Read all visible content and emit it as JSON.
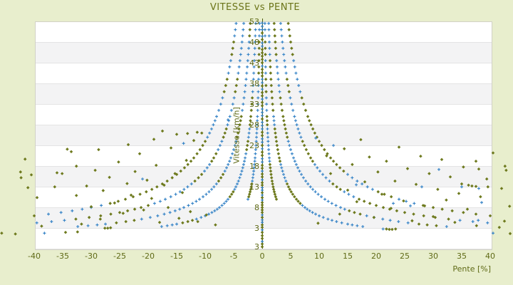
{
  "title": "VITESSE vs PENTE",
  "chart_data": {
    "type": "scatter",
    "title": "VITESSE vs PENTE",
    "xlabel": "Pente [%]",
    "ylabel": "Vitesse [km/h]",
    "xlim": [
      -40,
      40
    ],
    "ylim": [
      -2,
      53
    ],
    "grid": "horizontal-bands",
    "legend": "none",
    "x_tick_labels": [
      "-40",
      "-35",
      "-30",
      "-25",
      "-20",
      "-15",
      "-10",
      "-5",
      "0",
      "5",
      "10",
      "15",
      "20",
      "25",
      "30",
      "35",
      "40"
    ],
    "x_tick_values": [
      -40,
      -35,
      -30,
      -25,
      -20,
      -15,
      -10,
      -5,
      0,
      5,
      10,
      15,
      20,
      25,
      30,
      35,
      40
    ],
    "y_tick_labels": [
      "53",
      "48",
      "43",
      "38",
      "33",
      "28",
      "23",
      "18",
      "13",
      "8",
      "3"
    ],
    "y_tick_values": [
      53,
      48,
      43,
      38,
      33,
      28,
      23,
      18,
      13,
      8,
      3
    ],
    "y_axis_bottom_extra_label": "3",
    "colors": {
      "blue_marker": "#3a86c8",
      "olive_marker": "#6e7a1e",
      "zero_axis_line": "#4e5a10",
      "text": "#5f6a16",
      "title_text": "#6b7418",
      "band_white": "#ffffff",
      "band_gray": "#f3f3f4",
      "page_background": "#e8eecd"
    },
    "markers": {
      "blue": "plus",
      "olive": "diamond"
    },
    "series": [
      {
        "name": "hyperbolic-arcs",
        "description": "dense arcs v = k/|p| mirrored on both sides of p=0, mixed blue/olive markers",
        "model": "v = k / abs(p)",
        "sides": [
          -1,
          1
        ],
        "arcs": [
          {
            "k": 25,
            "v_min": 10,
            "olive_ratio_left": 0.3,
            "olive_ratio_right": 0.55
          },
          {
            "k": 60,
            "v_min": 3.4,
            "olive_ratio_left": 0.3,
            "olive_ratio_right": 0.45
          },
          {
            "k": 110,
            "v_min": 3.4,
            "olive_ratio_left": 0.35,
            "olive_ratio_right": 0.45
          },
          {
            "k": 170,
            "v_min": 4.3,
            "olive_ratio_left": 0.45,
            "olive_ratio_right": 0.5
          },
          {
            "k": 240,
            "v_min": 6.0,
            "olive_ratio_left": 0.5,
            "olive_ratio_right": 0.55
          }
        ],
        "v_samples": [
          52.5,
          51,
          49.5,
          48,
          46.5,
          45,
          43.5,
          42,
          40.5,
          39,
          37.5,
          36,
          34.5,
          33,
          31.5,
          30,
          29,
          28,
          27,
          26,
          25,
          24,
          23,
          22,
          21,
          20,
          19.2,
          18.4,
          17.6,
          16.8,
          16,
          15.2,
          14.4,
          13.7,
          13,
          12.4,
          11.8,
          11.2,
          10.6,
          10,
          9.5,
          9,
          8.5,
          8,
          7.6,
          7.2,
          6.8,
          6.4,
          6,
          5.6,
          5.2,
          4.9,
          4.6,
          4.3,
          4,
          3.8,
          3.6,
          3.4
        ]
      },
      {
        "name": "zero-slope-column",
        "description": "dense column of points on the p=0 axis line",
        "p": 0,
        "olive_ratio": 0.62,
        "v_values": [
          -1.5,
          -0.8,
          -0.2,
          0.5,
          1.2,
          2,
          2.6,
          3.2,
          3.8,
          4.4,
          5,
          5.6,
          6.2,
          6.8,
          7.4,
          8,
          8.6,
          9.2,
          9.8,
          10.4,
          11,
          11.6,
          12.2,
          12.8,
          13.4,
          14,
          14.7,
          15.4,
          16.1,
          16.8,
          17.5,
          18.2,
          19,
          19.8,
          20.6,
          21.4,
          22.2,
          23,
          23.8,
          24.6,
          25.4,
          26.2,
          27,
          27.8,
          28.6,
          29.4,
          30.2,
          31,
          31.8,
          32.6,
          33.4,
          34.2,
          35,
          35.8,
          36.6,
          37.4,
          38.2,
          39,
          39.8,
          40.6,
          41.4,
          42.2,
          43,
          43.8,
          44.6,
          45.4,
          46.2,
          47,
          47.8,
          48.6,
          49.4,
          50.2,
          51,
          51.8,
          52.6
        ]
      },
      {
        "name": "scatter-olive",
        "points": [
          [
            -45.7,
            1.8
          ],
          [
            -43.3,
            1.6
          ],
          [
            -41.6,
            19.7
          ],
          [
            -42.4,
            16.6
          ],
          [
            -40.5,
            15.9
          ],
          [
            -42.3,
            15.2
          ],
          [
            -41.1,
            12.8
          ],
          [
            -39.5,
            10.4
          ],
          [
            -38.7,
            3.5
          ],
          [
            -36.4,
            13
          ],
          [
            -36,
            16.4
          ],
          [
            -35.1,
            16.2
          ],
          [
            -34.2,
            22.1
          ],
          [
            -34.5,
            2
          ],
          [
            -32.6,
            18
          ],
          [
            -32.6,
            10.9
          ],
          [
            -32.4,
            2.1
          ],
          [
            -31.7,
            4
          ],
          [
            -33.5,
            21.5
          ],
          [
            -30.8,
            13.2
          ],
          [
            -30,
            8.2
          ],
          [
            -29.3,
            17
          ],
          [
            -28.7,
            22
          ],
          [
            -28.4,
            5.2
          ],
          [
            -27.6,
            3
          ],
          [
            -27.1,
            3
          ],
          [
            -26.6,
            3.1
          ],
          [
            -27.9,
            12.1
          ],
          [
            -26.8,
            15.3
          ],
          [
            -25.9,
            9.1
          ],
          [
            -25.2,
            19
          ],
          [
            -24.4,
            6.6
          ],
          [
            -23.7,
            13.8
          ],
          [
            -23.5,
            23.2
          ],
          [
            -23,
            11
          ],
          [
            -22.3,
            16.7
          ],
          [
            -21.5,
            21
          ],
          [
            -20.8,
            7.4
          ],
          [
            -20.2,
            14.6
          ],
          [
            -19.4,
            10.2
          ],
          [
            -19,
            24.5
          ],
          [
            -18.6,
            18.2
          ],
          [
            -18,
            4.4
          ],
          [
            -17.5,
            26.5
          ],
          [
            -17.2,
            13.4
          ],
          [
            -16.5,
            8
          ],
          [
            -16,
            22.4
          ],
          [
            -15.3,
            16.2
          ],
          [
            -15,
            25.7
          ],
          [
            -14.6,
            5.4
          ],
          [
            -14,
            11.6
          ],
          [
            -13.3,
            19.4
          ],
          [
            -13.1,
            25.9
          ],
          [
            -12.6,
            7
          ],
          [
            -12,
            24.2
          ],
          [
            -11.4,
            26.2
          ],
          [
            -11.3,
            4.6
          ],
          [
            -10.6,
            26
          ],
          [
            -9.8,
            6.2
          ],
          [
            -8.2,
            3.8
          ],
          [
            9.8,
            4.2
          ],
          [
            11.3,
            20.5
          ],
          [
            12,
            16.2
          ],
          [
            13.6,
            6.4
          ],
          [
            14.4,
            22.2
          ],
          [
            15,
            12.2
          ],
          [
            15.8,
            18.4
          ],
          [
            16.6,
            9.4
          ],
          [
            17.3,
            24.4
          ],
          [
            18,
            14.2
          ],
          [
            18.8,
            20.2
          ],
          [
            19.6,
            5.6
          ],
          [
            20.3,
            16.6
          ],
          [
            21,
            11.2
          ],
          [
            21.8,
            19.2
          ],
          [
            21.8,
            2.8
          ],
          [
            22.3,
            2.7
          ],
          [
            22.8,
            2.7
          ],
          [
            23.4,
            2.8
          ],
          [
            22.6,
            7.8
          ],
          [
            23.3,
            14.4
          ],
          [
            24,
            22.6
          ],
          [
            24.8,
            9.6
          ],
          [
            25.5,
            17.4
          ],
          [
            26.3,
            4.8
          ],
          [
            27,
            13.6
          ],
          [
            27.8,
            20.4
          ],
          [
            28.5,
            8.4
          ],
          [
            29.3,
            16.2
          ],
          [
            30,
            5.8
          ],
          [
            30.8,
            12.4
          ],
          [
            31.5,
            19.6
          ],
          [
            32.3,
            9.8
          ],
          [
            33,
            15.4
          ],
          [
            33.8,
            4.4
          ],
          [
            34.5,
            11.4
          ],
          [
            35.3,
            17.8
          ],
          [
            36,
            7.6
          ],
          [
            36.8,
            13.2
          ],
          [
            37.6,
            3.6
          ],
          [
            38.3,
            10.6
          ],
          [
            37.5,
            19.2
          ],
          [
            38,
            17.3
          ],
          [
            39.4,
            14.9
          ],
          [
            35,
            13.7
          ],
          [
            36.2,
            13.4
          ],
          [
            37.5,
            13.1
          ],
          [
            39.6,
            13
          ],
          [
            40.5,
            21.2
          ],
          [
            42.6,
            18
          ],
          [
            43.4,
            8.3
          ],
          [
            42.5,
            4.7
          ],
          [
            41.6,
            3.2
          ],
          [
            43.5,
            1.7
          ],
          [
            42,
            12.6
          ],
          [
            42.8,
            17
          ]
        ]
      },
      {
        "name": "scatter-blue",
        "points": [
          [
            -38.2,
            1.8
          ],
          [
            -21,
            14.9
          ],
          [
            -13.8,
            23.5
          ],
          [
            -6,
            29.2
          ],
          [
            9.4,
            24.8
          ],
          [
            12.5,
            23
          ],
          [
            16.5,
            13.5
          ],
          [
            21.2,
            2.8
          ],
          [
            23,
            9
          ],
          [
            26,
            8.4
          ],
          [
            28,
            13
          ],
          [
            31,
            17.2
          ],
          [
            35,
            13
          ],
          [
            38,
            12.6
          ],
          [
            37.9,
            4.9
          ],
          [
            38.5,
            9.2
          ],
          [
            40.5,
            1.8
          ]
        ]
      }
    ]
  }
}
